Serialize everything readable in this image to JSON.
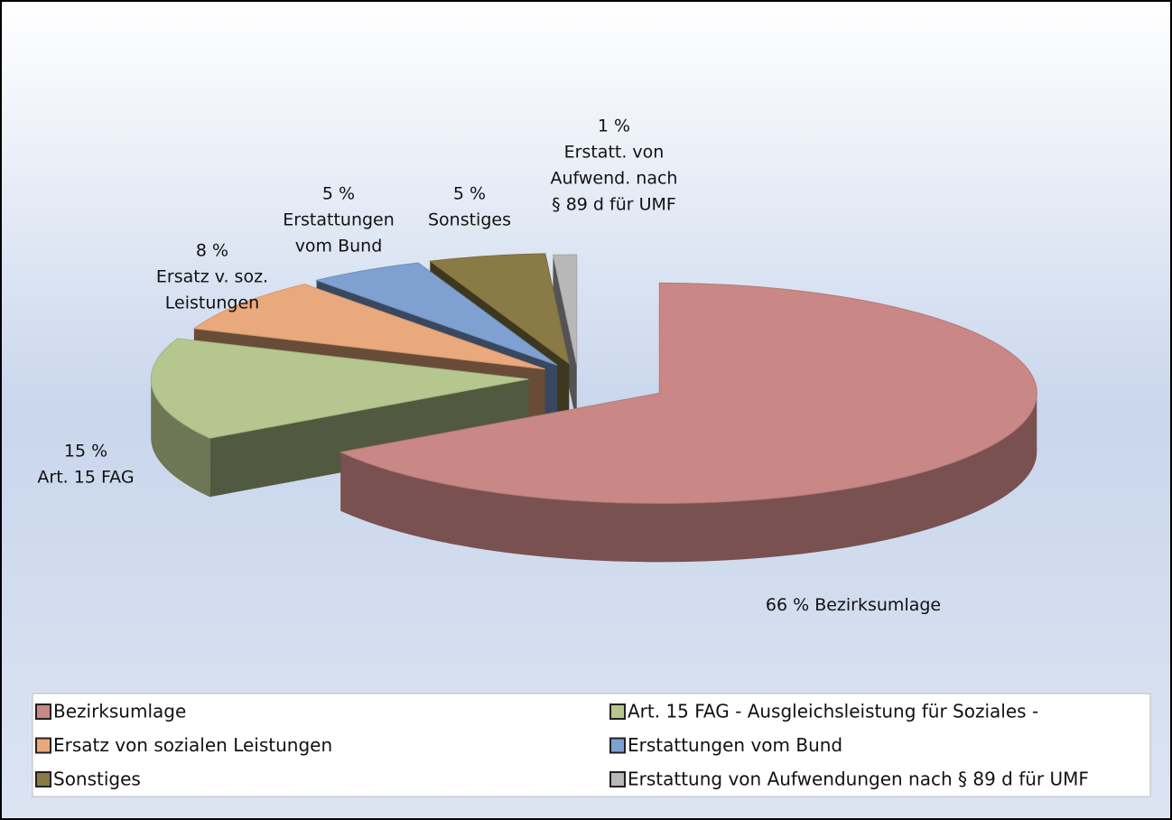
{
  "chart_data": {
    "type": "pie",
    "categories": [
      "Bezirksumlage",
      "Art. 15 FAG - Ausgleichsleistung für Soziales -",
      "Ersatz von sozialen Leistungen",
      "Erstattungen vom Bund",
      "Sonstiges",
      "Erstattung von Aufwendungen nach § 89 d für UMF"
    ],
    "values": [
      66,
      15,
      8,
      5,
      5,
      1
    ],
    "value_labels": [
      "66 %",
      "15 %",
      "8 %",
      "5 %",
      "5 %",
      "1 %"
    ],
    "data_labels": [
      [
        "Bezirksumlage"
      ],
      [
        "Art. 15 FAG"
      ],
      [
        "Ersatz v. soz.",
        "Leistungen"
      ],
      [
        "Erstattungen",
        "vom Bund"
      ],
      [
        "Sonstiges"
      ],
      [
        "Erstatt. von",
        "Aufwend. nach",
        "§ 89 d für UMF"
      ]
    ],
    "colors": [
      "#c98786",
      "#b5c78e",
      "#e9a97c",
      "#7ea1d2",
      "#8a7a45",
      "#b8b8b8"
    ],
    "legend": "bottom"
  }
}
